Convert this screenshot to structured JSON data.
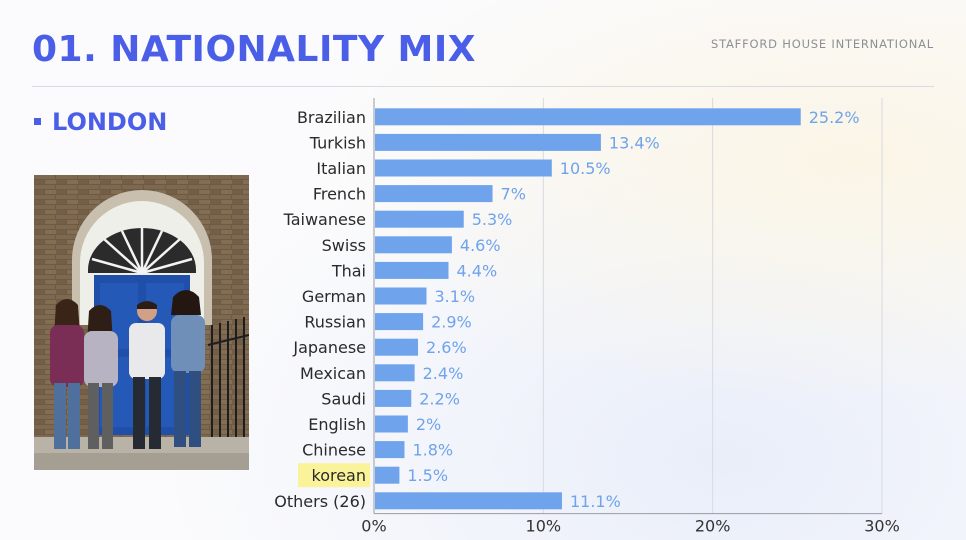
{
  "header": {
    "title": "01. NATIONALITY MIX",
    "brand": "STAFFORD HOUSE INTERNATIONAL"
  },
  "section": {
    "location": "LONDON"
  },
  "colors": {
    "accent": "#4a5ee8",
    "bar": "#6fa3ec",
    "value_label": "#6fa3ec",
    "highlight": "#fbf39a"
  },
  "chart_data": {
    "type": "bar",
    "orientation": "horizontal",
    "categories": [
      "Brazilian",
      "Turkish",
      "Italian",
      "French",
      "Taiwanese",
      "Swiss",
      "Thai",
      "German",
      "Russian",
      "Japanese",
      "Mexican",
      "Saudi",
      "English",
      "Chinese",
      "korean",
      "Others (26)"
    ],
    "values": [
      25.2,
      13.4,
      10.5,
      7,
      5.3,
      4.6,
      4.4,
      3.1,
      2.9,
      2.6,
      2.4,
      2.2,
      2,
      1.8,
      1.5,
      11.1
    ],
    "value_labels": [
      "25.2%",
      "13.4%",
      "10.5%",
      "7%",
      "5.3%",
      "4.6%",
      "4.4%",
      "3.1%",
      "2.9%",
      "2.6%",
      "2.4%",
      "2.2%",
      "2%",
      "1.8%",
      "1.5%",
      "11.1%"
    ],
    "highlighted_category": "korean",
    "xlim": [
      0,
      30
    ],
    "xticks": [
      0,
      10,
      20,
      30
    ],
    "xtick_labels": [
      "0%",
      "10%",
      "20%",
      "30%"
    ],
    "grid": true,
    "title": "",
    "xlabel": "",
    "ylabel": ""
  }
}
